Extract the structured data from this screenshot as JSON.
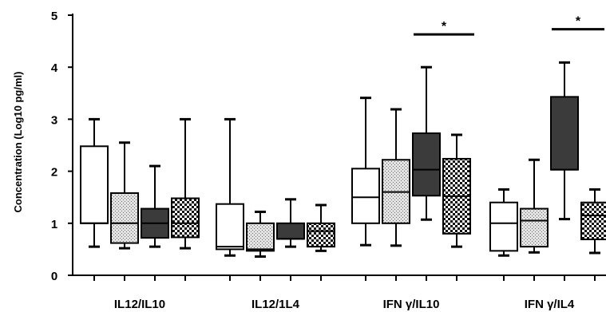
{
  "chart_data": {
    "type": "box",
    "ylabel": "Concentration (Log10 pg/ml)",
    "ylim": [
      0,
      5
    ],
    "yticks": [
      "0",
      "1",
      "2",
      "3",
      "4",
      "5"
    ],
    "categories": [
      "IL12/IL10",
      "IL12/1L4",
      "IFN γ/IL10",
      "IFN γ/IL4"
    ],
    "series_styles": [
      "white",
      "dotted",
      "dark",
      "checker"
    ],
    "groups": [
      {
        "category": "IL12/IL10",
        "boxes": [
          {
            "style": "white",
            "min": 0.55,
            "q1": 1.0,
            "median": 1.0,
            "q3": 2.48,
            "max": 3.0
          },
          {
            "style": "dotted",
            "min": 0.52,
            "q1": 0.62,
            "median": 1.0,
            "q3": 1.58,
            "max": 2.55
          },
          {
            "style": "dark",
            "min": 0.55,
            "q1": 0.72,
            "median": 1.0,
            "q3": 1.28,
            "max": 2.1
          },
          {
            "style": "checker",
            "min": 0.52,
            "q1": 0.73,
            "median": 1.0,
            "q3": 1.48,
            "max": 3.0
          }
        ]
      },
      {
        "category": "IL12/1L4",
        "boxes": [
          {
            "style": "white",
            "min": 0.38,
            "q1": 0.5,
            "median": 0.55,
            "q3": 1.37,
            "max": 3.0
          },
          {
            "style": "dotted",
            "min": 0.36,
            "q1": 0.47,
            "median": 0.5,
            "q3": 1.0,
            "max": 1.22
          },
          {
            "style": "dark",
            "min": 0.55,
            "q1": 0.7,
            "median": 0.7,
            "q3": 1.0,
            "max": 1.46
          },
          {
            "style": "checker",
            "min": 0.47,
            "q1": 0.55,
            "median": 0.85,
            "q3": 1.0,
            "max": 1.35
          }
        ]
      },
      {
        "category": "IFN γ/IL10",
        "boxes": [
          {
            "style": "white",
            "min": 0.58,
            "q1": 1.0,
            "median": 1.5,
            "q3": 2.05,
            "max": 3.41
          },
          {
            "style": "dotted",
            "min": 0.57,
            "q1": 1.0,
            "median": 1.6,
            "q3": 2.22,
            "max": 3.19
          },
          {
            "style": "dark",
            "min": 1.07,
            "q1": 1.53,
            "median": 2.03,
            "q3": 2.73,
            "max": 4.0
          },
          {
            "style": "checker",
            "min": 0.55,
            "q1": 0.8,
            "median": 1.52,
            "q3": 2.24,
            "max": 2.7
          }
        ]
      },
      {
        "category": "IFN γ/IL4",
        "boxes": [
          {
            "style": "white",
            "min": 0.38,
            "q1": 0.47,
            "median": 1.0,
            "q3": 1.4,
            "max": 1.65
          },
          {
            "style": "dotted",
            "min": 0.44,
            "q1": 0.55,
            "median": 1.05,
            "q3": 1.28,
            "max": 2.22
          },
          {
            "style": "dark",
            "min": 1.08,
            "q1": 2.03,
            "median": 2.03,
            "q3": 3.43,
            "max": 4.09
          },
          {
            "style": "checker",
            "min": 0.43,
            "q1": 0.69,
            "median": 1.15,
            "q3": 1.4,
            "max": 1.65
          }
        ]
      }
    ],
    "annotations": [
      {
        "text": "*",
        "group": "IFN γ/IL10",
        "y": 4.63
      },
      {
        "text": "*",
        "group": "IFN γ/IL4",
        "y": 4.73
      }
    ]
  }
}
